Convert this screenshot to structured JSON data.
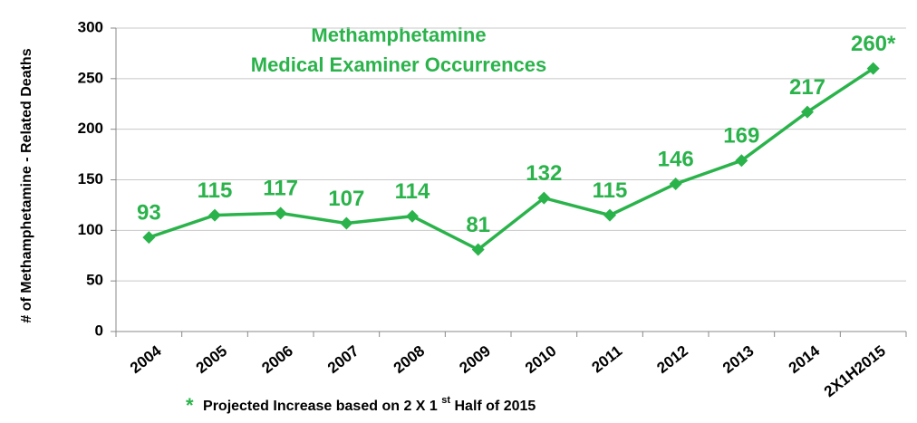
{
  "chart_data": {
    "type": "line",
    "title": [
      "Methamphetamine",
      "Medical Examiner Occurrences"
    ],
    "y_label": "# of Methamphetamine - Related Deaths",
    "categories": [
      "2004",
      "2005",
      "2006",
      "2007",
      "2008",
      "2009",
      "2010",
      "2011",
      "2012",
      "2013",
      "2014",
      "2X1H2015"
    ],
    "series": [
      {
        "name": "Methamphetamine Medical Examiner Occurrences",
        "color": "#2bb34b",
        "values": [
          93,
          115,
          117,
          107,
          114,
          81,
          132,
          115,
          146,
          169,
          217,
          260
        ],
        "value_labels": [
          "93",
          "115",
          "117",
          "107",
          "114",
          "81",
          "132",
          "115",
          "146",
          "169",
          "217",
          "260*"
        ]
      }
    ],
    "ylim": [
      0,
      300
    ],
    "yticks": [
      0,
      50,
      100,
      150,
      200,
      250,
      300
    ],
    "grid": true,
    "footnote": {
      "marker": "*",
      "text": [
        "Projected Increase based on 2 X 1",
        "st",
        " Half of 2015"
      ]
    }
  }
}
